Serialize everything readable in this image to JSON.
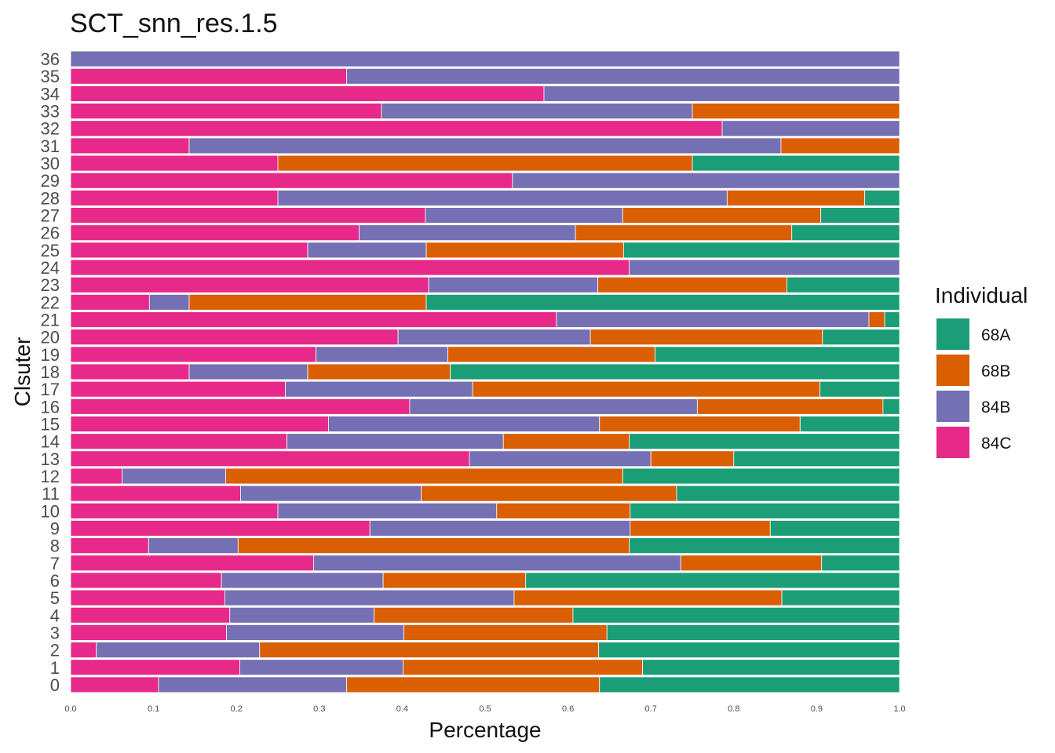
{
  "chart_data": {
    "type": "bar",
    "orientation": "horizontal",
    "stacked": true,
    "title": "SCT_snn_res.1.5",
    "xlabel": "Percentage",
    "ylabel": "Clsuter",
    "xlim": [
      0,
      1
    ],
    "xticks": [
      "0.0",
      "0.1",
      "0.2",
      "0.3",
      "0.4",
      "0.5",
      "0.6",
      "0.7",
      "0.8",
      "0.9",
      "1.0"
    ],
    "categories": [
      "0",
      "1",
      "2",
      "3",
      "4",
      "5",
      "6",
      "7",
      "8",
      "9",
      "10",
      "11",
      "12",
      "13",
      "14",
      "15",
      "16",
      "17",
      "18",
      "19",
      "20",
      "21",
      "22",
      "23",
      "24",
      "25",
      "26",
      "27",
      "28",
      "29",
      "30",
      "31",
      "32",
      "33",
      "34",
      "35",
      "36"
    ],
    "legend": {
      "title": "Individual",
      "position": "right"
    },
    "series": [
      {
        "name": "84C",
        "color": "#E7298A",
        "values": [
          0.106,
          0.204,
          0.031,
          0.188,
          0.192,
          0.186,
          0.182,
          0.293,
          0.094,
          0.361,
          0.25,
          0.205,
          0.062,
          0.481,
          0.261,
          0.311,
          0.409,
          0.259,
          0.143,
          0.296,
          0.395,
          0.586,
          0.095,
          0.432,
          0.674,
          0.286,
          0.348,
          0.428,
          0.25,
          0.533,
          0.25,
          0.143,
          0.786,
          0.375,
          0.571,
          0.333,
          0.0
        ]
      },
      {
        "name": "84B",
        "color": "#7570B3",
        "values": [
          0.227,
          0.197,
          0.197,
          0.214,
          0.174,
          0.349,
          0.195,
          0.443,
          0.108,
          0.314,
          0.264,
          0.218,
          0.125,
          0.219,
          0.261,
          0.327,
          0.347,
          0.226,
          0.143,
          0.159,
          0.232,
          0.377,
          0.048,
          0.204,
          0.326,
          0.143,
          0.261,
          0.238,
          0.542,
          0.467,
          0.0,
          0.714,
          0.214,
          0.375,
          0.429,
          0.667,
          1.0
        ]
      },
      {
        "name": "68B",
        "color": "#D95F02",
        "values": [
          0.305,
          0.289,
          0.409,
          0.245,
          0.24,
          0.323,
          0.172,
          0.17,
          0.472,
          0.169,
          0.161,
          0.308,
          0.479,
          0.1,
          0.152,
          0.242,
          0.224,
          0.419,
          0.172,
          0.25,
          0.28,
          0.019,
          0.286,
          0.228,
          0.0,
          0.238,
          0.261,
          0.239,
          0.166,
          0.0,
          0.5,
          0.143,
          0.0,
          0.25,
          0.0,
          0.0,
          0.0
        ]
      },
      {
        "name": "68A",
        "color": "#1B9E77",
        "values": [
          0.362,
          0.31,
          0.363,
          0.353,
          0.394,
          0.142,
          0.451,
          0.094,
          0.326,
          0.156,
          0.325,
          0.269,
          0.334,
          0.2,
          0.326,
          0.12,
          0.02,
          0.096,
          0.542,
          0.295,
          0.093,
          0.018,
          0.571,
          0.136,
          0.0,
          0.333,
          0.13,
          0.095,
          0.042,
          0.0,
          0.25,
          0.0,
          0.0,
          0.0,
          0.0,
          0.0,
          0.0
        ]
      }
    ]
  }
}
